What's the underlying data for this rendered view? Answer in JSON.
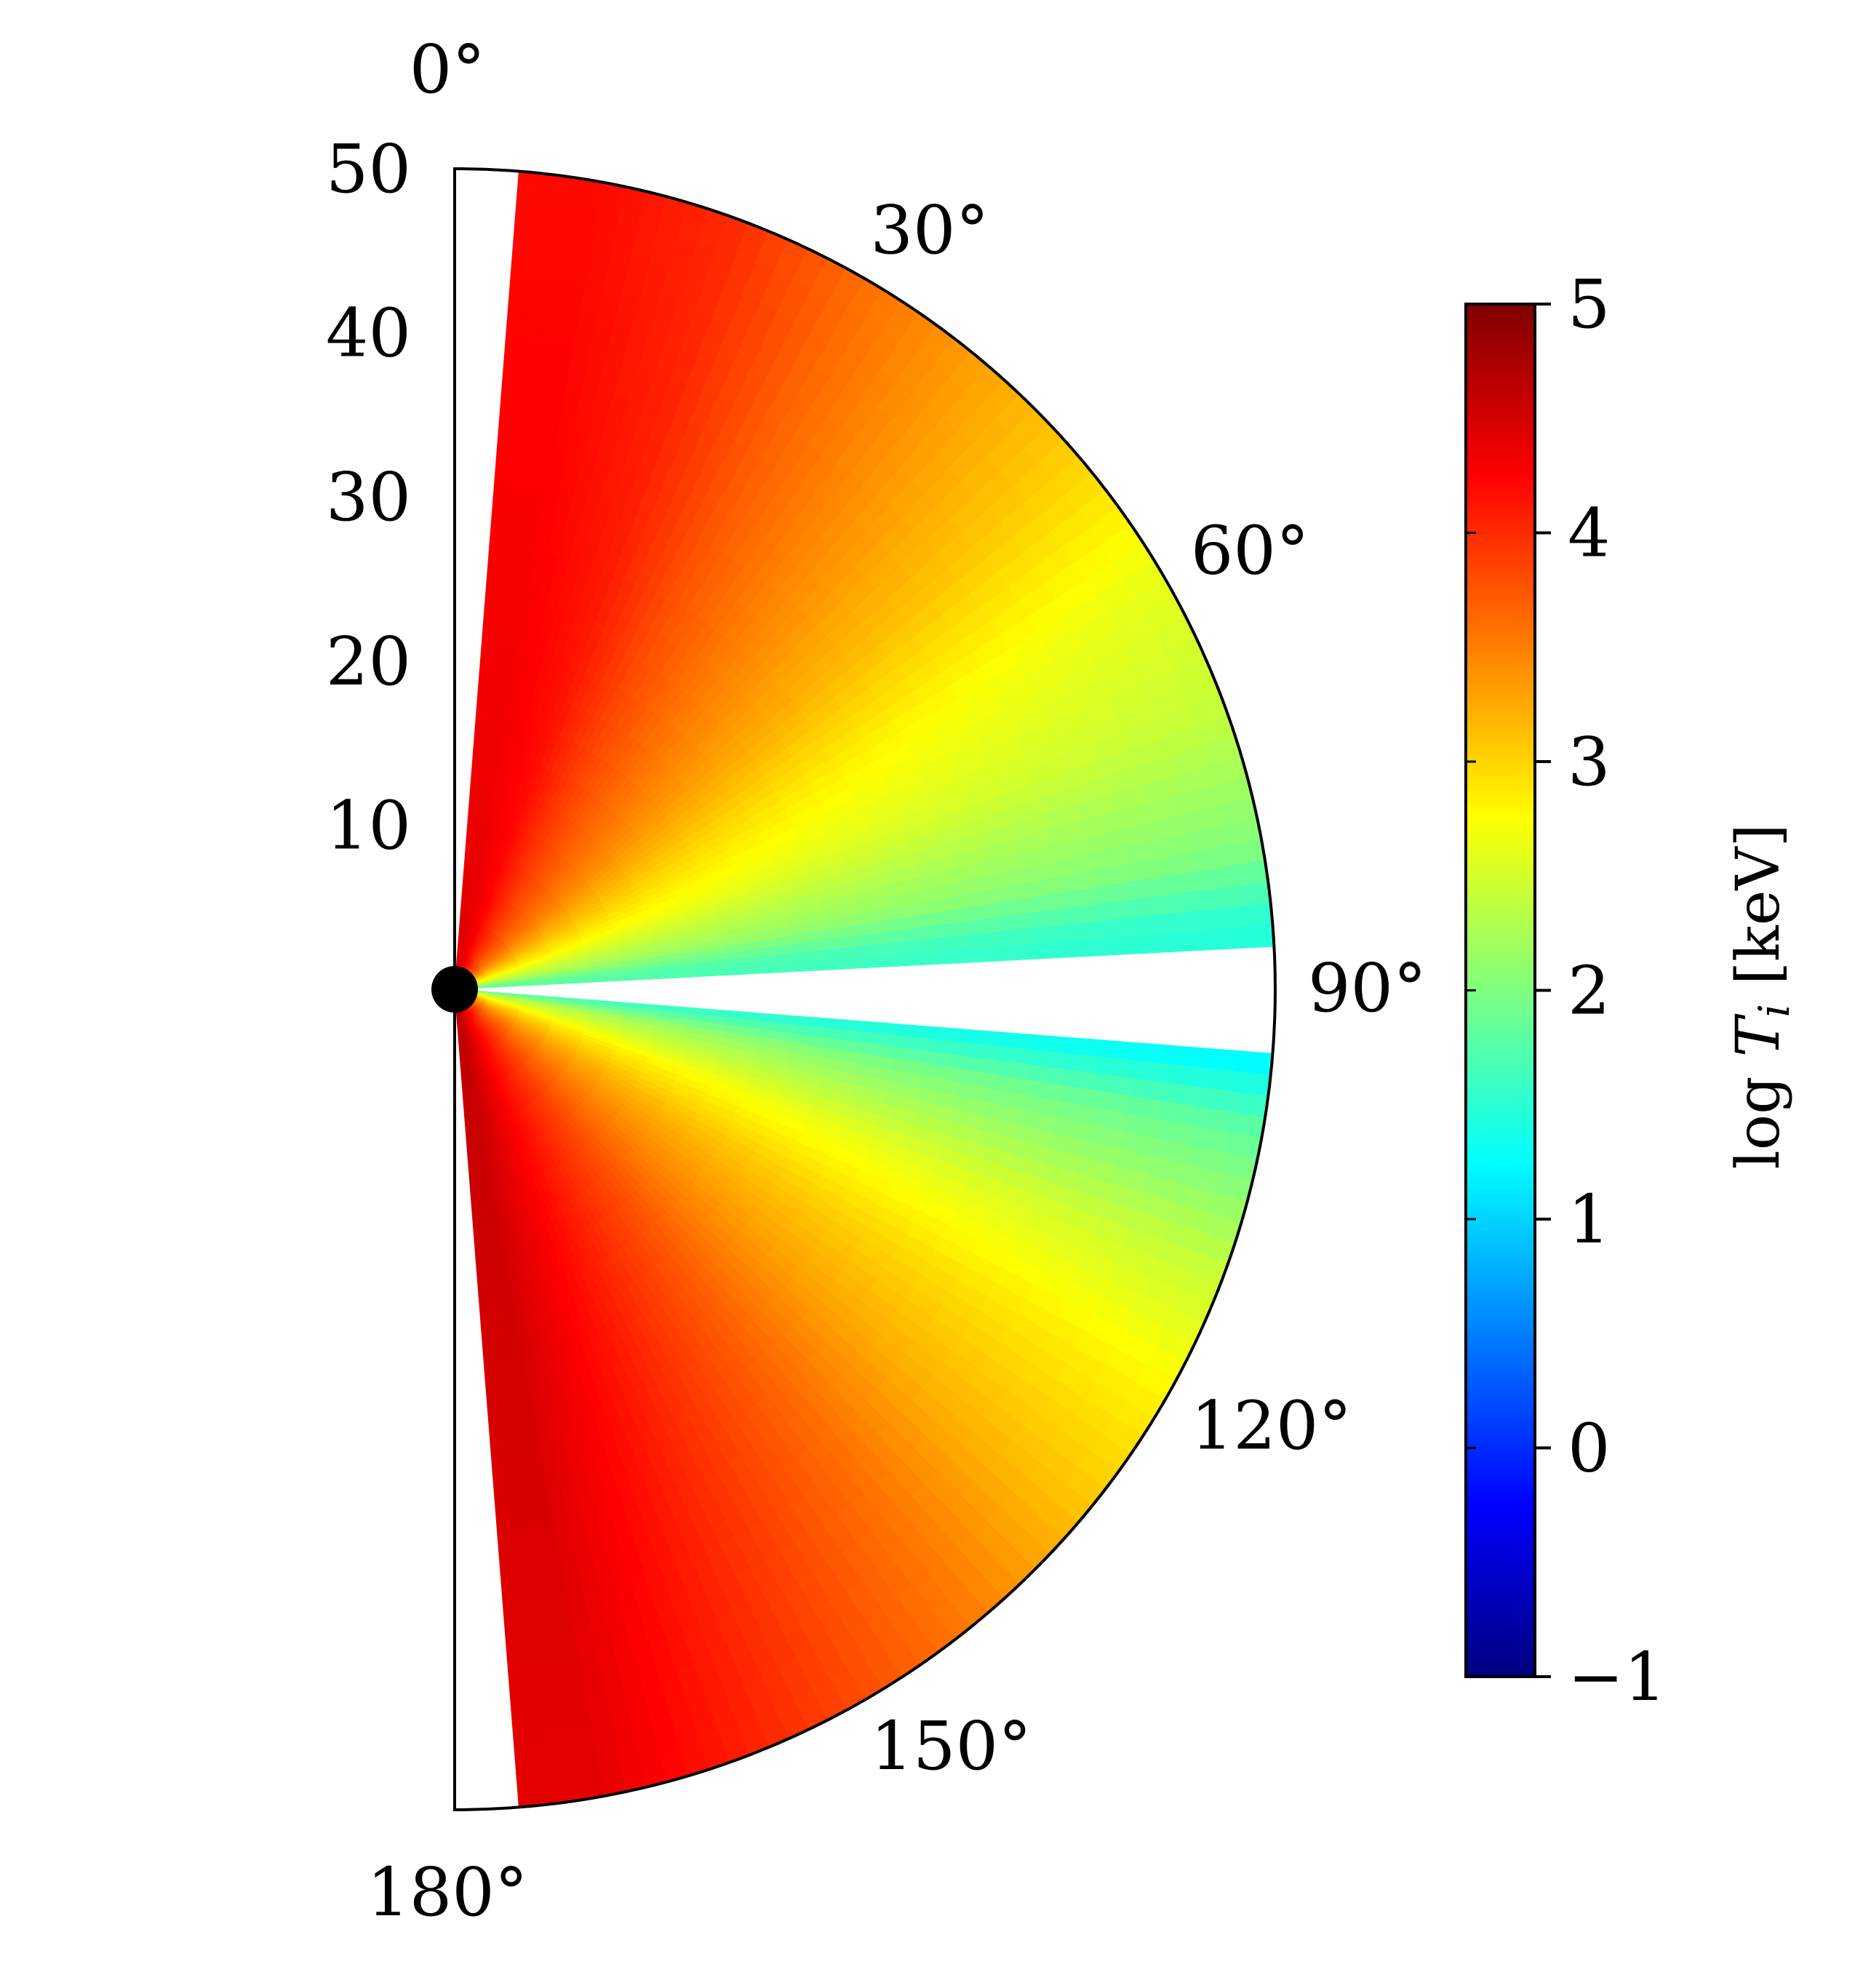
{
  "chart_data": {
    "type": "heatmap",
    "projection": "polar-half",
    "title": "",
    "theta_ticks": [
      "0°",
      "30°",
      "60°",
      "90°",
      "120°",
      "150°",
      "180°"
    ],
    "theta_tick_values": [
      0,
      30,
      60,
      90,
      120,
      150,
      180
    ],
    "r_ticks": [
      "10",
      "20",
      "30",
      "40",
      "50"
    ],
    "r_tick_values": [
      10,
      20,
      30,
      40,
      50
    ],
    "r_range": [
      0,
      50
    ],
    "theta_range": [
      0,
      180
    ],
    "colorbar": {
      "label": "log T_i [keV]",
      "label_main": "log ",
      "label_var": "T",
      "label_sub": "i",
      "label_unit": " [keV]",
      "range": [
        -1,
        5
      ],
      "ticks": [
        "5",
        "4",
        "3",
        "2",
        "1",
        "0",
        "−1"
      ],
      "tick_values": [
        5,
        4,
        3,
        2,
        1,
        0,
        -1
      ],
      "colormap": "jet",
      "colors": [
        "#00007f",
        "#0000ff",
        "#007fff",
        "#00ffff",
        "#7fff7f",
        "#ffff00",
        "#ff7f00",
        "#ff0000",
        "#7f0000"
      ]
    },
    "temperature_profile": {
      "description_units": "log T_i [keV] by polar angle (degrees)",
      "theta_deg": [
        3,
        10,
        20,
        30,
        40,
        50,
        60,
        70,
        80,
        85,
        95,
        100,
        110,
        120,
        130,
        140,
        150,
        160,
        170,
        177
      ],
      "log_T_outer": [
        4.2,
        4.2,
        4.0,
        3.6,
        3.3,
        3.0,
        2.6,
        2.4,
        2.0,
        1.5,
        1.2,
        1.8,
        2.4,
        2.8,
        3.1,
        3.5,
        3.8,
        4.1,
        4.4,
        4.4
      ],
      "log_T_inner": [
        4.5,
        4.5,
        4.4,
        4.2,
        4.0,
        3.8,
        3.5,
        3.0,
        2.4,
        2.0,
        2.0,
        2.6,
        3.2,
        3.6,
        3.9,
        4.1,
        4.3,
        4.5,
        4.7,
        4.7
      ]
    },
    "empty_regions_deg": [
      [
        0,
        4
      ],
      [
        87,
        94
      ],
      [
        176,
        180
      ]
    ]
  }
}
